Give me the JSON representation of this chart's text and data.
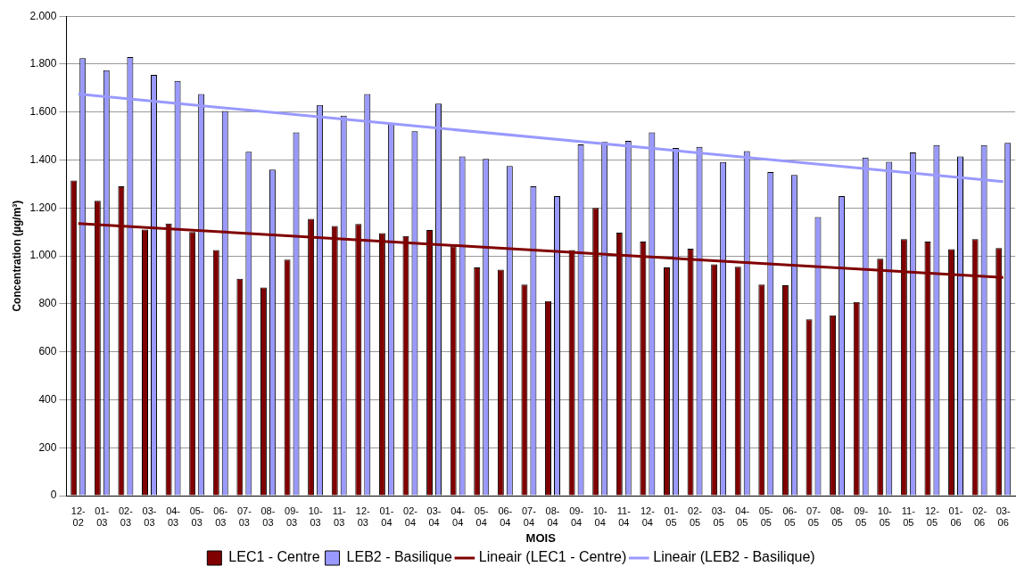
{
  "chart_data": {
    "type": "bar",
    "xlabel": "MOIS",
    "ylabel": "Concentration (µg/m³)",
    "categories": [
      "12-02",
      "01-03",
      "02-03",
      "03-03",
      "04-03",
      "05-03",
      "06-03",
      "07-03",
      "08-03",
      "09-03",
      "10-03",
      "11-03",
      "12-03",
      "01-04",
      "02-04",
      "03-04",
      "04-04",
      "05-04",
      "06-04",
      "07-04",
      "08-04",
      "09-04",
      "10-04",
      "11-04",
      "12-04",
      "01-05",
      "02-05",
      "03-05",
      "04-05",
      "05-05",
      "06-05",
      "07-05",
      "08-05",
      "09-05",
      "10-05",
      "11-05",
      "12-05",
      "01-06",
      "02-06",
      "03-06"
    ],
    "series": [
      {
        "name": "LEC1 - Centre",
        "color": "#800000",
        "values": [
          1315,
          1230,
          1290,
          1110,
          1135,
          1100,
          1025,
          905,
          868,
          985,
          1155,
          1125,
          1133,
          1095,
          1083,
          1108,
          1040,
          952,
          943,
          880,
          812,
          1025,
          1200,
          1097,
          1060,
          952,
          1030,
          965,
          955,
          880,
          878,
          735,
          752,
          808,
          988,
          1070,
          1060,
          1028,
          1070,
          1033
        ]
      },
      {
        "name": "LEB2 - Basilique",
        "color": "#9999ff",
        "values": [
          1825,
          1775,
          1830,
          1755,
          1730,
          1675,
          1605,
          1435,
          1360,
          1515,
          1630,
          1585,
          1675,
          1550,
          1520,
          1635,
          1415,
          1405,
          1375,
          1290,
          1250,
          1465,
          1475,
          1480,
          1515,
          1450,
          1455,
          1392,
          1437,
          1350,
          1338,
          1162,
          1250,
          1410,
          1393,
          1432,
          1462,
          1415,
          1462,
          1472
        ]
      },
      {
        "name": "Lineair (LEC1 - Centre)",
        "type": "line",
        "color": "#800000",
        "x": [
          "12-02",
          "03-06"
        ],
        "values": [
          1135,
          910
        ]
      },
      {
        "name": "Lineair (LEB2 - Basilique)",
        "type": "line",
        "color": "#9999ff",
        "x": [
          "12-02",
          "03-06"
        ],
        "values": [
          1675,
          1310
        ]
      }
    ],
    "ylim": [
      0,
      2000
    ],
    "yticks": [
      0,
      200,
      400,
      600,
      800,
      {
        "value": 1000,
        "label": "1.000"
      },
      {
        "value": 1200,
        "label": "1.200"
      },
      {
        "value": 1400,
        "label": "1.400"
      },
      {
        "value": 1600,
        "label": "1.600"
      },
      {
        "value": 1800,
        "label": "1.800"
      },
      {
        "value": 2000,
        "label": "2.000"
      }
    ],
    "grid": "y",
    "legend": "bottom"
  }
}
